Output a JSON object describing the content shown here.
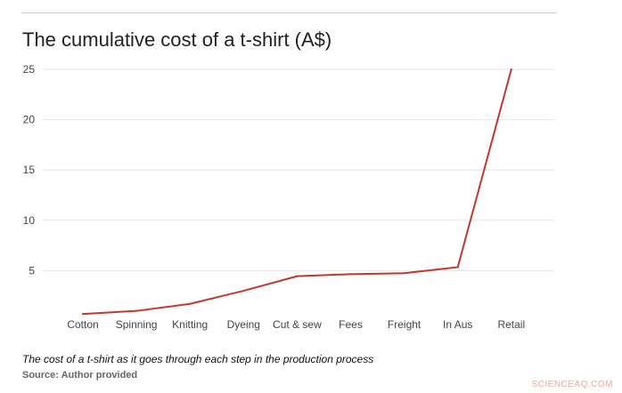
{
  "chart_data": {
    "type": "line",
    "title": "The cumulative cost of a t-shirt (A$)",
    "categories": [
      "Cotton",
      "Spinning",
      "Knitting",
      "Dyeing",
      "Cut & sew",
      "Fees",
      "Freight",
      "In Aus",
      "Retail"
    ],
    "series": [
      {
        "values": [
          0.7,
          1.0,
          1.7,
          3.0,
          4.45,
          4.65,
          4.75,
          5.35,
          25
        ]
      }
    ],
    "yticks": [
      5,
      10,
      15,
      20,
      25
    ],
    "ylim": [
      0,
      25
    ],
    "grid": true,
    "legend": "none",
    "line_color": "#c0392b",
    "gridline_color": "#e6e6e6"
  },
  "caption": "The cost of a t-shirt as it goes through each step in the production process",
  "source": "Source: Author provided",
  "watermark": "SCIENCEAQ.COM"
}
